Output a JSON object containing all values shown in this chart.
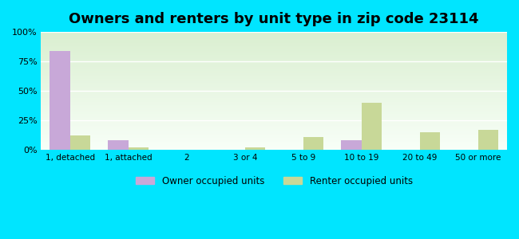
{
  "title": "Owners and renters by unit type in zip code 23114",
  "categories": [
    "1, detached",
    "1, attached",
    "2",
    "3 or 4",
    "5 to 9",
    "10 to 19",
    "20 to 49",
    "50 or more"
  ],
  "owner_values": [
    84,
    8,
    0,
    0,
    0,
    8,
    0,
    0
  ],
  "renter_values": [
    12,
    2,
    0,
    2,
    11,
    40,
    15,
    17
  ],
  "owner_color": "#c8a8d8",
  "renter_color": "#c8d898",
  "background_outer": "#00e5ff",
  "grad_top_color": "#daefd0",
  "grad_bottom_color": "#f8fff8",
  "ylim": [
    0,
    100
  ],
  "yticks": [
    0,
    25,
    50,
    75,
    100
  ],
  "ytick_labels": [
    "0%",
    "25%",
    "50%",
    "75%",
    "100%"
  ],
  "legend_owner": "Owner occupied units",
  "legend_renter": "Renter occupied units",
  "title_fontsize": 13,
  "bar_width": 0.35
}
